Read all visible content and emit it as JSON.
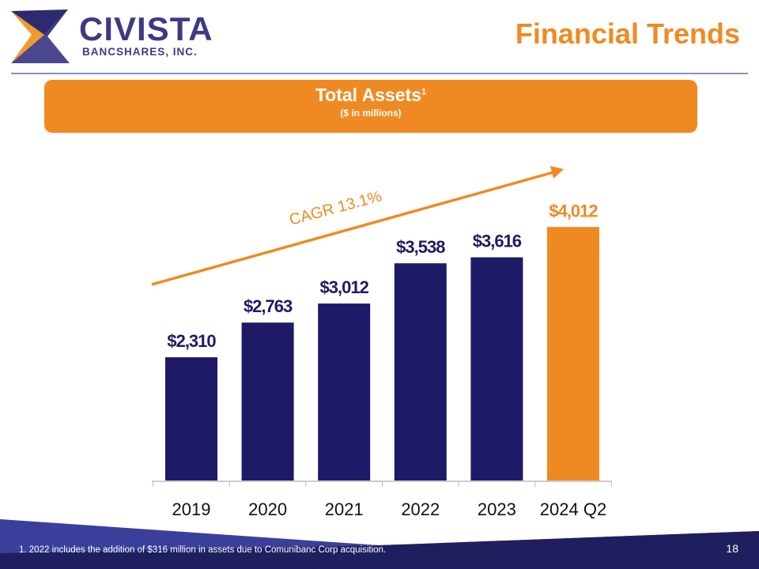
{
  "header": {
    "logo_name": "CIVISTA",
    "logo_sub": "BANCSHARES, INC.",
    "title": "Financial Trends"
  },
  "banner": {
    "title": "Total Assets",
    "sup": "1",
    "subtitle": "($ in millions)"
  },
  "colors": {
    "bar": "#1e1a66",
    "highlight": "#ef8a23",
    "footer_dark": "#1f1f5f",
    "footer_light": "#3b3f9c"
  },
  "chart_data": {
    "type": "bar",
    "title": "Total Assets ($ in millions)",
    "categories": [
      "2019",
      "2020",
      "2021",
      "2022",
      "2023",
      "2024 Q2"
    ],
    "values": [
      2310,
      2763,
      3012,
      3538,
      3616,
      4012
    ],
    "labels": [
      "$2,310",
      "$2,763",
      "$3,012",
      "$3,538",
      "$3,616",
      "$4,012"
    ],
    "highlight_index": 5,
    "annotation": "CAGR 13.1%",
    "ylim": [
      700,
      4500
    ],
    "grid": false,
    "xlabel": "",
    "ylabel": ""
  },
  "footer": {
    "footnote": "1.  2022 includes the addition of $316 million in assets due to Comunibanc Corp acquisition.",
    "page": "18"
  }
}
